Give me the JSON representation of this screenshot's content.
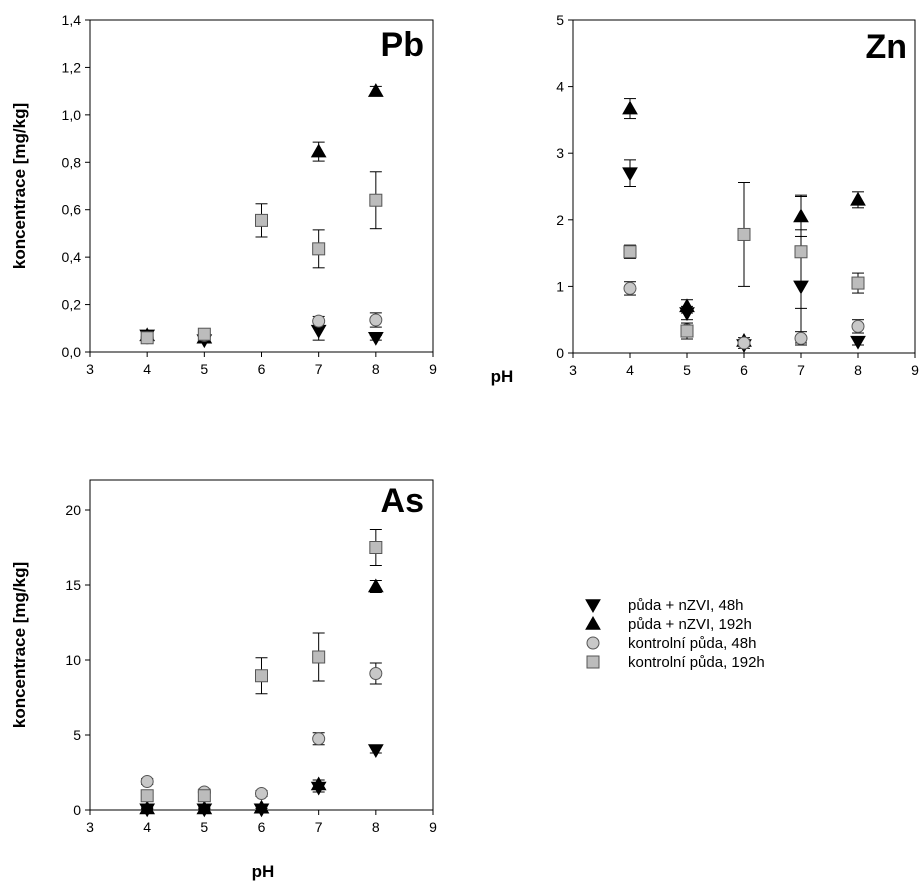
{
  "legend": [
    {
      "series": "puda_nzvi_48h",
      "label": "půda + nZVI, 48h",
      "marker": "triangle-down",
      "color": "#000000"
    },
    {
      "series": "puda_nzvi_192h",
      "label": "půda + nZVI, 192h",
      "marker": "triangle-up",
      "color": "#000000"
    },
    {
      "series": "kontrol_48h",
      "label": "kontrolní půda, 48h",
      "marker": "circle",
      "color": "#c8c8c8"
    },
    {
      "series": "kontrol_192h",
      "label": "kontrolní půda, 192h",
      "marker": "square",
      "color": "#bcbcbc"
    }
  ],
  "chart_data": [
    {
      "type": "scatter",
      "panel_label": "Pb",
      "xlabel": "",
      "ylabel": "koncentrace [mg/kg]",
      "xlim": [
        3,
        9
      ],
      "ylim": [
        0,
        1.4
      ],
      "xticks": [
        "3",
        "4",
        "5",
        "6",
        "7",
        "8",
        "9"
      ],
      "yticks": [
        "0,0",
        "0,2",
        "0,4",
        "0,6",
        "0,8",
        "1,0",
        "1,2",
        "1,4"
      ],
      "series": [
        {
          "key": "puda_nzvi_48h",
          "points": [
            {
              "x": 4,
              "y": 0.07,
              "err": 0.01
            },
            {
              "x": 5,
              "y": 0.05,
              "err": 0.005
            },
            {
              "x": 7,
              "y": 0.09,
              "err": 0.04
            },
            {
              "x": 8,
              "y": 0.06,
              "err": 0.01
            }
          ]
        },
        {
          "key": "puda_nzvi_192h",
          "points": [
            {
              "x": 4,
              "y": 0.07,
              "err": 0.01
            },
            {
              "x": 5,
              "y": 0.06,
              "err": 0.005
            },
            {
              "x": 7,
              "y": 0.845,
              "err": 0.04
            },
            {
              "x": 8,
              "y": 1.1,
              "err": 0.02
            }
          ]
        },
        {
          "key": "kontrol_48h",
          "points": [
            {
              "x": 4,
              "y": 0.06,
              "err": 0.01
            },
            {
              "x": 5,
              "y": 0.07,
              "err": 0.005
            },
            {
              "x": 7,
              "y": 0.13,
              "err": 0.02
            },
            {
              "x": 8,
              "y": 0.135,
              "err": 0.03
            }
          ]
        },
        {
          "key": "kontrol_192h",
          "points": [
            {
              "x": 4,
              "y": 0.06,
              "err": 0.01
            },
            {
              "x": 5,
              "y": 0.075,
              "err": 0.01
            },
            {
              "x": 6,
              "y": 0.555,
              "err": 0.07
            },
            {
              "x": 7,
              "y": 0.435,
              "err": 0.08
            },
            {
              "x": 8,
              "y": 0.64,
              "err": 0.12
            }
          ]
        }
      ]
    },
    {
      "type": "scatter",
      "panel_label": "Zn",
      "xlabel": "pH",
      "ylabel": "",
      "xlim": [
        3,
        9
      ],
      "ylim": [
        0,
        5
      ],
      "xticks": [
        "3",
        "4",
        "5",
        "6",
        "7",
        "8",
        "9"
      ],
      "yticks": [
        "0",
        "1",
        "2",
        "3",
        "4",
        "5"
      ],
      "series": [
        {
          "key": "puda_nzvi_48h",
          "points": [
            {
              "x": 4,
              "y": 2.7,
              "err": 0.2
            },
            {
              "x": 5,
              "y": 0.6,
              "err": 0.1
            },
            {
              "x": 6,
              "y": 0.12,
              "err": 0.05
            },
            {
              "x": 7,
              "y": 1.0,
              "err": 0.85
            },
            {
              "x": 8,
              "y": 0.17,
              "err": 0.05
            }
          ]
        },
        {
          "key": "puda_nzvi_192h",
          "points": [
            {
              "x": 4,
              "y": 3.67,
              "err": 0.15
            },
            {
              "x": 5,
              "y": 0.7,
              "err": 0.1
            },
            {
              "x": 6,
              "y": 0.18,
              "err": 0.05
            },
            {
              "x": 7,
              "y": 2.05,
              "err": 0.3
            },
            {
              "x": 8,
              "y": 2.3,
              "err": 0.12
            }
          ]
        },
        {
          "key": "kontrol_48h",
          "points": [
            {
              "x": 4,
              "y": 0.97,
              "err": 0.1
            },
            {
              "x": 5,
              "y": 0.35,
              "err": 0.05
            },
            {
              "x": 6,
              "y": 0.15,
              "err": 0.05
            },
            {
              "x": 7,
              "y": 0.22,
              "err": 0.1
            },
            {
              "x": 8,
              "y": 0.4,
              "err": 0.1
            }
          ]
        },
        {
          "key": "kontrol_192h",
          "points": [
            {
              "x": 4,
              "y": 1.52,
              "err": 0.1
            },
            {
              "x": 5,
              "y": 0.33,
              "err": 0.12
            },
            {
              "x": 6,
              "y": 1.78,
              "err": 0.78
            },
            {
              "x": 7,
              "y": 1.52,
              "err": 0.85
            },
            {
              "x": 8,
              "y": 1.05,
              "err": 0.15
            }
          ]
        }
      ]
    },
    {
      "type": "scatter",
      "panel_label": "As",
      "xlabel": "pH",
      "ylabel": "koncentrace [mg/kg]",
      "xlim": [
        3,
        9
      ],
      "ylim": [
        0,
        22
      ],
      "xticks": [
        "3",
        "4",
        "5",
        "6",
        "7",
        "8",
        "9"
      ],
      "yticks": [
        "0",
        "5",
        "10",
        "15",
        "20"
      ],
      "series": [
        {
          "key": "puda_nzvi_48h",
          "points": [
            {
              "x": 4,
              "y": 0.05,
              "err": 0.05
            },
            {
              "x": 5,
              "y": 0.05,
              "err": 0.05
            },
            {
              "x": 6,
              "y": 0.05,
              "err": 0.05
            },
            {
              "x": 7,
              "y": 1.5,
              "err": 0.3
            },
            {
              "x": 8,
              "y": 4.0,
              "err": 0.2
            }
          ]
        },
        {
          "key": "puda_nzvi_192h",
          "points": [
            {
              "x": 4,
              "y": 0.1,
              "err": 0.05
            },
            {
              "x": 5,
              "y": 0.1,
              "err": 0.05
            },
            {
              "x": 6,
              "y": 0.15,
              "err": 0.05
            },
            {
              "x": 7,
              "y": 1.7,
              "err": 0.3
            },
            {
              "x": 8,
              "y": 14.9,
              "err": 0.4
            }
          ]
        },
        {
          "key": "kontrol_48h",
          "points": [
            {
              "x": 4,
              "y": 1.9,
              "err": 0.2
            },
            {
              "x": 5,
              "y": 1.2,
              "err": 0.2
            },
            {
              "x": 6,
              "y": 1.1,
              "err": 0.2
            },
            {
              "x": 7,
              "y": 4.75,
              "err": 0.4
            },
            {
              "x": 8,
              "y": 9.1,
              "err": 0.7
            }
          ]
        },
        {
          "key": "kontrol_192h",
          "points": [
            {
              "x": 4,
              "y": 0.95,
              "err": 0.2
            },
            {
              "x": 5,
              "y": 0.95,
              "err": 0.3
            },
            {
              "x": 6,
              "y": 8.95,
              "err": 1.2
            },
            {
              "x": 7,
              "y": 10.2,
              "err": 1.6
            },
            {
              "x": 8,
              "y": 17.5,
              "err": 1.2
            }
          ]
        }
      ]
    }
  ]
}
